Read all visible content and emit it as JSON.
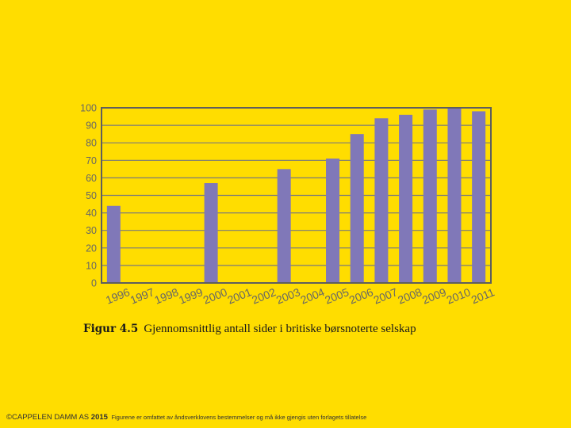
{
  "chart_data": {
    "type": "bar",
    "categories": [
      "1996",
      "1997",
      "1998",
      "1999",
      "2000",
      "2001",
      "2002",
      "2003",
      "2004",
      "2005",
      "2006",
      "2007",
      "2008",
      "2009",
      "2010",
      "2011"
    ],
    "values": [
      44,
      null,
      null,
      null,
      57,
      null,
      null,
      65,
      null,
      71,
      85,
      94,
      96,
      99,
      100,
      98
    ],
    "ylim": [
      0,
      100
    ],
    "yticks": [
      0,
      10,
      20,
      30,
      40,
      50,
      60,
      70,
      80,
      90,
      100
    ],
    "grid": true,
    "colors": {
      "bar": "#8078B8",
      "plot_background": "#FFDD00",
      "frame": "#5E5E5E",
      "grid": "#7A7A7A",
      "tick_label": "#666666"
    }
  },
  "caption": {
    "label": "Figur 4.5",
    "text": "Gjennomsnittlig antall sider i britiske børsnoterte selskap"
  },
  "footer": {
    "copyright_prefix": "©CAPPELEN DAMM AS ",
    "year": "2015",
    "note": "Figurene er omfattet av åndsverklovens bestemmelser og må ikke gjengis uten forlagets tillatelse"
  }
}
